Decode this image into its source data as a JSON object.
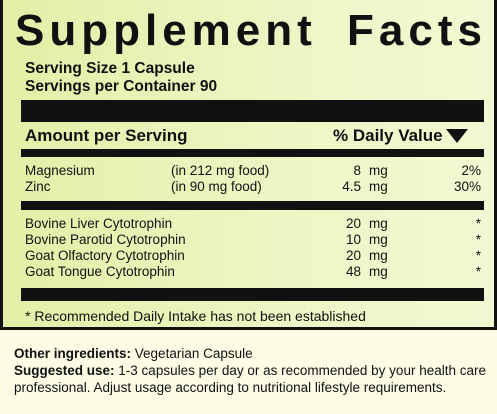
{
  "title": {
    "word1": "Supplement",
    "word2": "Facts"
  },
  "serving": {
    "size": "Serving Size 1 Capsule",
    "per_container": "Servings per Container 90"
  },
  "header": {
    "amount": "Amount per Serving",
    "daily_value": "% Daily Value"
  },
  "nutrients": [
    {
      "name": "Magnesium",
      "food": "(in 212 mg food)",
      "amount": "8",
      "unit": "mg",
      "dv": "2%"
    },
    {
      "name": "Zinc",
      "food": "(in 90 mg food)",
      "amount": "4.5",
      "unit": "mg",
      "dv": "30%"
    }
  ],
  "glandulars": [
    {
      "name": "Bovine Liver Cytotrophin",
      "amount": "20",
      "unit": "mg",
      "dv": "*"
    },
    {
      "name": "Bovine Parotid Cytotrophin",
      "amount": "10",
      "unit": "mg",
      "dv": "*"
    },
    {
      "name": "Goat Olfactory Cytotrophin",
      "amount": "20",
      "unit": "mg",
      "dv": "*"
    },
    {
      "name": "Goat Tongue Cytotrophin",
      "amount": "48",
      "unit": "mg",
      "dv": "*"
    }
  ],
  "footnote": "* Recommended Daily Intake has not been established",
  "other_ingredients": {
    "label": "Other ingredients:",
    "value": "Vegetarian Capsule"
  },
  "suggested_use": {
    "label": "Suggested use:",
    "line1": "1-3 capsules per day or as recommended by your health care",
    "line2": "professional.  Adjust usage according to nutritional lifestyle requirements."
  }
}
